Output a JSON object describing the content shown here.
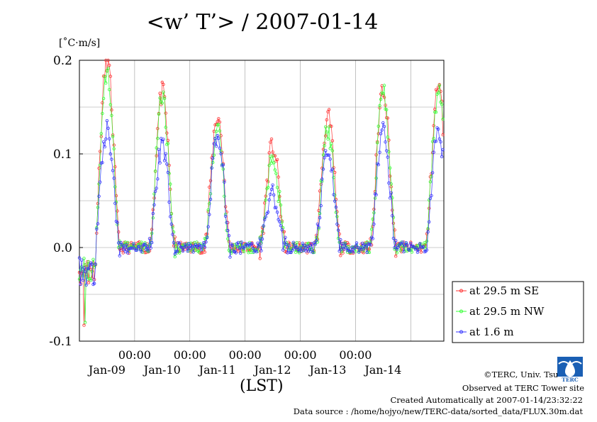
{
  "chart_data": {
    "type": "line",
    "title": "<w’ T’> / 2007-01-14",
    "ylabel": "[˚C·m/s]",
    "xlabel": "(LST)",
    "ylim": [
      -0.1,
      0.2
    ],
    "yticks": [
      "0.2",
      "0.1",
      "0.0",
      "-0.1"
    ],
    "xlim_days": [
      8,
      14.6
    ],
    "time_labels": [
      "00:00",
      "00:00",
      "00:00",
      "00:00",
      "00:00"
    ],
    "date_labels": [
      "Jan-09",
      "Jan-10",
      "Jan-11",
      "Jan-12",
      "Jan-13",
      "Jan-14"
    ],
    "grid": true,
    "legend_position": "right",
    "series": [
      {
        "name": "at 29.5 m SE",
        "color": "#ff3333",
        "peaks": [
          {
            "day": "Jan-08",
            "value": 0.2
          },
          {
            "day": "Jan-09",
            "value": 0.165
          },
          {
            "day": "Jan-10",
            "value": 0.14
          },
          {
            "day": "Jan-11",
            "value": 0.108
          },
          {
            "day": "Jan-12",
            "value": 0.138
          },
          {
            "day": "Jan-13",
            "value": 0.172
          }
        ],
        "night_level": 0.0,
        "min_value": -0.083
      },
      {
        "name": "at 29.5 m NW",
        "color": "#33ff33",
        "peaks": [
          {
            "day": "Jan-08",
            "value": 0.19
          },
          {
            "day": "Jan-09",
            "value": 0.158
          },
          {
            "day": "Jan-10",
            "value": 0.122
          },
          {
            "day": "Jan-11",
            "value": 0.095
          },
          {
            "day": "Jan-12",
            "value": 0.125
          },
          {
            "day": "Jan-13",
            "value": 0.165
          }
        ],
        "night_level": 0.0,
        "min_value": -0.08
      },
      {
        "name": "at 1.6 m",
        "color": "#3333ff",
        "peaks": [
          {
            "day": "Jan-08",
            "value": 0.126
          },
          {
            "day": "Jan-09",
            "value": 0.108
          },
          {
            "day": "Jan-10",
            "value": 0.12
          },
          {
            "day": "Jan-11",
            "value": 0.055
          },
          {
            "day": "Jan-12",
            "value": 0.1
          },
          {
            "day": "Jan-13",
            "value": 0.125
          }
        ],
        "night_level": 0.0,
        "min_value": -0.04
      }
    ]
  },
  "credits": {
    "line1": "©TERC, Univ. Tsukuba",
    "line2": "Observed at TERC Tower site",
    "line3": "Created Automatically at 2007-01-14/23:32:22",
    "line4": "Data source : /home/hojyo/new/TERC-data/sorted_data/FLUX.30m.dat"
  },
  "logo_text": "TERC"
}
